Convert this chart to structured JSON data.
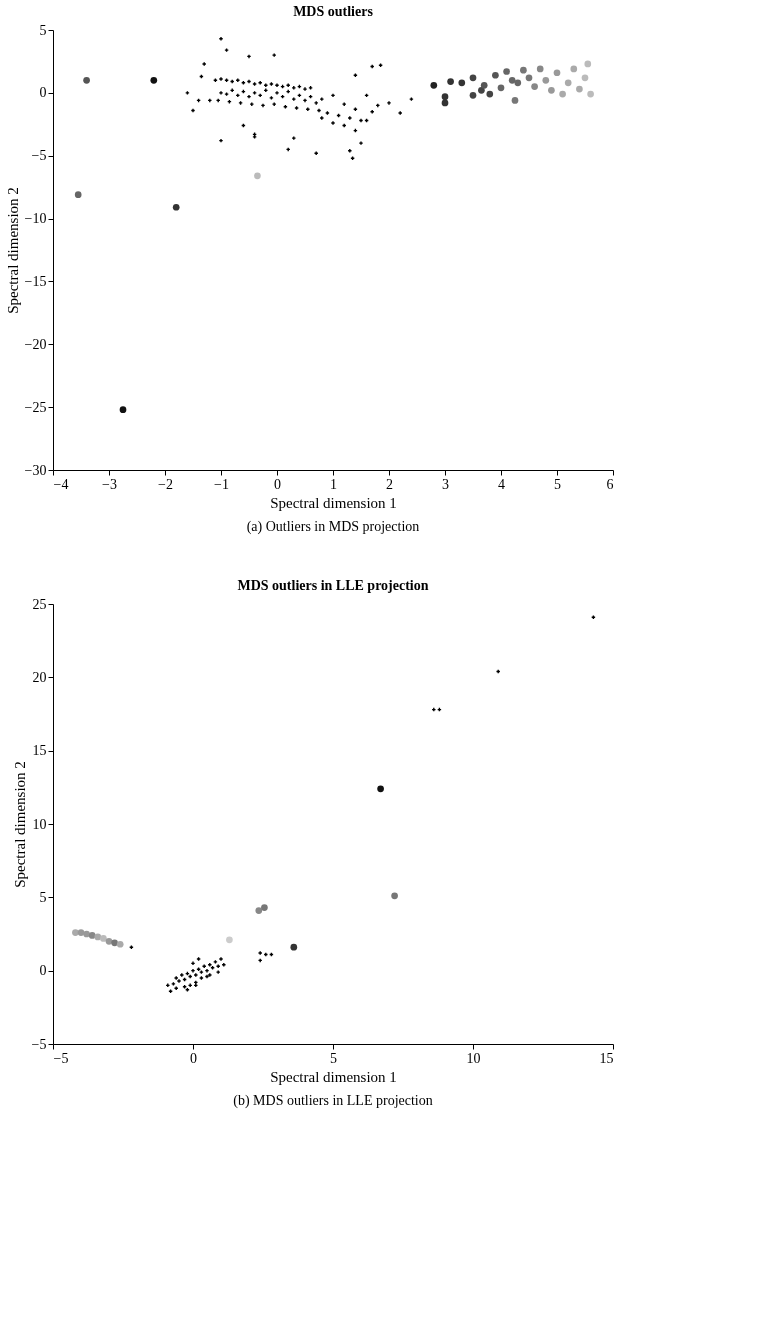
{
  "chart_data": [
    {
      "type": "scatter",
      "title": "MDS outliers",
      "xlabel": "Spectral dimension 1",
      "ylabel": "Spectral dimension 2",
      "xlim": [
        -4,
        6
      ],
      "xticks": [
        -4,
        -3,
        -2,
        -1,
        0,
        1,
        2,
        3,
        4,
        5,
        6
      ],
      "ylim": [
        -30,
        5
      ],
      "yticks": [
        -30,
        -25,
        -20,
        -15,
        -10,
        -5,
        0,
        5
      ],
      "grid": false,
      "legend": false,
      "annotations": [
        "(a) Outliers in MDS projection"
      ],
      "series": [
        {
          "marker": "cross",
          "color": "#000000",
          "x": [
            -1.1,
            -1.0,
            -0.9,
            -0.8,
            -0.7,
            -0.6,
            -0.5,
            -0.4,
            -0.3,
            -0.2,
            -0.1,
            0.0,
            0.1,
            0.2,
            0.3,
            0.4,
            0.5,
            0.6,
            -1.0,
            -0.9,
            -0.8,
            -0.7,
            -0.6,
            -0.5,
            -0.4,
            -0.3,
            -0.2,
            -0.1,
            0.0,
            0.1,
            0.2,
            0.3,
            0.4,
            0.5,
            0.6,
            0.7,
            0.8,
            -1.05,
            -0.85,
            -0.65,
            -0.45,
            -0.25,
            -0.05,
            0.15,
            0.35,
            0.55,
            0.75,
            0.9,
            1.0,
            1.1,
            1.2,
            1.3,
            1.4,
            1.5,
            0.8,
            1.0,
            1.2,
            1.4,
            1.6,
            1.7,
            1.8,
            2.0,
            2.2,
            2.4,
            1.3,
            1.35,
            1.5,
            0.7,
            0.3,
            -0.4,
            -0.6,
            -1.2,
            -1.5,
            -1.35,
            -1.3,
            -1.0,
            -0.9,
            -0.5,
            -0.05,
            1.7,
            1.85,
            1.4,
            1.6,
            0.2,
            -0.4,
            -1.0,
            -1.6,
            -1.4
          ],
          "values": [
            1.0,
            1.1,
            1.0,
            0.9,
            1.0,
            0.8,
            0.9,
            0.7,
            0.8,
            0.6,
            0.7,
            0.6,
            0.5,
            0.6,
            0.4,
            0.5,
            0.3,
            0.4,
            0.0,
            -0.1,
            0.2,
            -0.2,
            0.1,
            -0.3,
            0.0,
            -0.2,
            0.2,
            -0.4,
            0.0,
            -0.3,
            0.1,
            -0.5,
            -0.2,
            -0.6,
            -0.3,
            -0.8,
            -0.5,
            -0.6,
            -0.7,
            -0.8,
            -0.9,
            -1.0,
            -0.9,
            -1.1,
            -1.2,
            -1.3,
            -1.4,
            -1.6,
            -0.2,
            -1.8,
            -0.9,
            -2.0,
            -1.3,
            -2.2,
            -2.0,
            -2.4,
            -2.6,
            -3.0,
            -2.2,
            -1.5,
            -1.0,
            -0.8,
            -1.6,
            -0.5,
            -4.6,
            -5.2,
            -4.0,
            -4.8,
            -3.6,
            -3.3,
            -2.6,
            -0.6,
            -1.4,
            1.3,
            2.3,
            4.3,
            3.4,
            2.9,
            3.0,
            2.1,
            2.2,
            1.4,
            -0.2,
            -4.5,
            -3.5,
            -3.8,
            0.0,
            -0.6
          ]
        },
        {
          "marker": "circle",
          "x": [
            -3.4,
            -2.2,
            -3.55,
            -1.8,
            -0.35,
            -2.75,
            2.8,
            3.1,
            3.3,
            3.0,
            3.0,
            3.5,
            3.5,
            3.65,
            3.7,
            3.8,
            3.9,
            4.0,
            4.1,
            4.2,
            4.25,
            4.3,
            4.4,
            4.5,
            4.6,
            4.7,
            4.8,
            4.9,
            5.0,
            5.1,
            5.2,
            5.3,
            5.4,
            5.5,
            5.55,
            5.6
          ],
          "values": [
            1.0,
            1.0,
            -8.1,
            -9.1,
            -6.6,
            -25.2,
            0.6,
            0.9,
            0.8,
            -0.3,
            -0.8,
            1.2,
            -0.2,
            0.2,
            0.6,
            -0.1,
            1.4,
            0.4,
            1.7,
            1.0,
            -0.6,
            0.8,
            1.8,
            1.2,
            0.5,
            1.9,
            1.0,
            0.2,
            1.6,
            -0.1,
            0.8,
            1.9,
            0.3,
            1.2,
            2.3,
            -0.1
          ],
          "colors": [
            "#555555",
            "#111111",
            "#666666",
            "#333333",
            "#bbbbbb",
            "#111111",
            "#222222",
            "#333333",
            "#333333",
            "#333333",
            "#333333",
            "#444444",
            "#444444",
            "#444444",
            "#555555",
            "#444444",
            "#555555",
            "#666666",
            "#666666",
            "#666666",
            "#777777",
            "#666666",
            "#777777",
            "#777777",
            "#888888",
            "#888888",
            "#999999",
            "#999999",
            "#999999",
            "#aaaaaa",
            "#aaaaaa",
            "#aaaaaa",
            "#aaaaaa",
            "#bbbbbb",
            "#bbbbbb",
            "#bbbbbb"
          ]
        }
      ]
    },
    {
      "type": "scatter",
      "title": "MDS outliers in LLE projection",
      "xlabel": "Spectral dimension 1",
      "ylabel": "Spectral dimension 2",
      "xlim": [
        -5,
        15
      ],
      "xticks": [
        -5,
        0,
        5,
        10,
        15
      ],
      "ylim": [
        -5,
        25
      ],
      "yticks": [
        -5,
        0,
        5,
        10,
        15,
        20,
        25
      ],
      "grid": false,
      "legend": false,
      "annotations": [
        "(b) MDS outliers in LLE projection"
      ],
      "series": [
        {
          "marker": "cross",
          "color": "#000000",
          "x": [
            14.3,
            10.9,
            8.6,
            8.8,
            2.4,
            2.6,
            2.4,
            2.8,
            -2.2,
            -0.9,
            -0.7,
            -0.5,
            -0.3,
            -0.1,
            0.1,
            0.3,
            0.5,
            0.7,
            0.9,
            1.1,
            -0.6,
            -0.4,
            -0.2,
            0.0,
            0.2,
            0.4,
            0.6,
            0.8,
            1.0,
            -0.3,
            -0.1,
            0.1,
            0.3,
            0.5,
            -0.8,
            -0.6,
            0.0,
            0.2,
            0.6,
            0.9,
            -0.2,
            0.1
          ],
          "values": [
            24.1,
            20.4,
            17.8,
            17.8,
            1.2,
            1.1,
            0.7,
            1.1,
            1.6,
            -1.0,
            -0.9,
            -0.7,
            -0.6,
            -0.4,
            -0.3,
            -0.1,
            0.0,
            0.2,
            0.3,
            0.4,
            -0.5,
            -0.3,
            -0.2,
            0.0,
            0.1,
            0.3,
            0.4,
            0.6,
            0.8,
            -1.1,
            -1.0,
            -0.8,
            -0.5,
            -0.4,
            -1.4,
            -1.2,
            0.5,
            0.8,
            -0.3,
            -0.1,
            -1.3,
            -1.0
          ]
        },
        {
          "marker": "circle",
          "x": [
            6.7,
            7.2,
            2.35,
            2.55,
            3.6,
            1.3,
            -4.2,
            -4.0,
            -3.8,
            -3.6,
            -3.4,
            -3.2,
            -3.0,
            -2.8,
            -2.6
          ],
          "values": [
            12.4,
            5.1,
            4.1,
            4.3,
            1.6,
            2.1,
            2.6,
            2.6,
            2.5,
            2.4,
            2.3,
            2.2,
            2.0,
            1.9,
            1.8
          ],
          "colors": [
            "#111111",
            "#777777",
            "#888888",
            "#777777",
            "#333333",
            "#cccccc",
            "#aaaaaa",
            "#999999",
            "#999999",
            "#888888",
            "#aaaaaa",
            "#bbbbbb",
            "#999999",
            "#777777",
            "#aaaaaa"
          ]
        }
      ]
    }
  ]
}
